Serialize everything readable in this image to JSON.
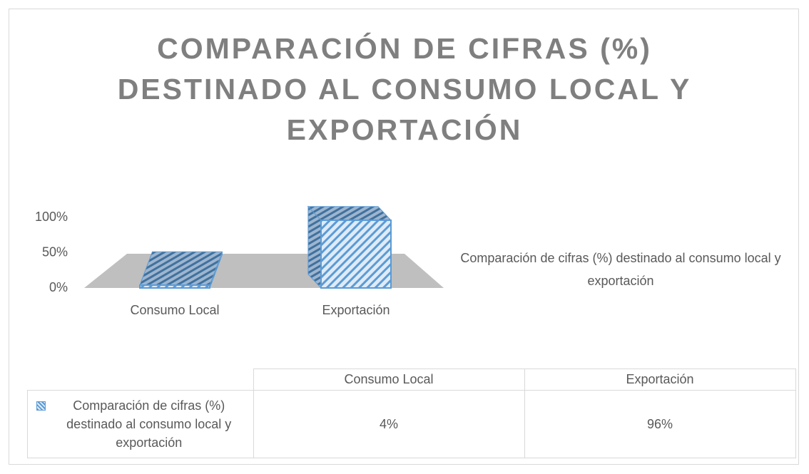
{
  "chart_data": {
    "type": "bar3d",
    "title": "COMPARACIÓN DE CIFRAS (%) DESTINADO AL CONSUMO LOCAL Y EXPORTACIÓN",
    "categories": [
      "Consumo Local",
      "Exportación"
    ],
    "series": [
      {
        "name": "Comparación de cifras (%) destinado al consumo local y exportación",
        "color": "#5b9bd5",
        "values": [
          4,
          96
        ],
        "value_labels": [
          "4%",
          "96%"
        ]
      }
    ],
    "ylim": [
      0,
      100
    ],
    "yticks": [
      {
        "value": 0,
        "label": "0%"
      },
      {
        "value": 50,
        "label": "50%"
      },
      {
        "value": 100,
        "label": "100%"
      }
    ],
    "grid": false,
    "legend": "right",
    "data_table": true
  }
}
